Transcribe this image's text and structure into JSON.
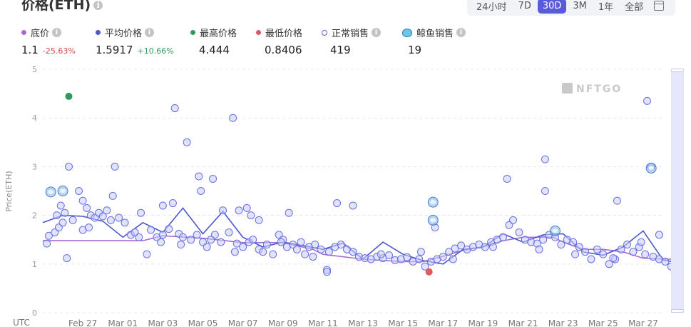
{
  "header": {
    "title": "价格(ETH)"
  },
  "range_buttons": [
    "24小时",
    "7D",
    "30D",
    "3M",
    "1年",
    "全部"
  ],
  "range_active": "30D",
  "stats": {
    "floor": {
      "label": "底价",
      "value": "1.1",
      "change": "-25.63%",
      "color": "#a66ad4"
    },
    "avg": {
      "label": "平均价格",
      "value": "1.5917",
      "change": "+10.66%",
      "color": "#4a58c8"
    },
    "max": {
      "label": "最高价格",
      "value": "4.444",
      "color": "#2e9b5d"
    },
    "min": {
      "label": "最低价格",
      "value": "0.8406",
      "color": "#e05a5a"
    },
    "normal": {
      "label": "正常销售",
      "value": "419",
      "color": "#5a5bdb"
    },
    "whale": {
      "label": "鲸鱼销售",
      "value": "19"
    }
  },
  "watermark": "NFTGO",
  "chart_data": {
    "type": "line",
    "title": "",
    "ylabel": "Price(ETH)",
    "xlabel": "UTC",
    "x_unit": "date",
    "x_range": [
      "2023-02-25",
      "2023-03-28"
    ],
    "xticks": [
      "Feb 27",
      "Mar 01",
      "Mar 03",
      "Mar 05",
      "Mar 07",
      "Mar 09",
      "Mar 11",
      "Mar 13",
      "Mar 15",
      "Mar 17",
      "Mar 19",
      "Mar 21",
      "Mar 23",
      "Mar 25",
      "Mar 27"
    ],
    "ylim": [
      0,
      5
    ],
    "yticks": [
      0,
      1,
      2,
      3,
      4,
      5
    ],
    "grid": true,
    "series": [
      {
        "name": "底价",
        "color": "#a66ad4",
        "points": [
          [
            0.0,
            1.48
          ],
          [
            3.0,
            1.48
          ],
          [
            5.0,
            1.48
          ],
          [
            6.0,
            1.58
          ],
          [
            8.0,
            1.53
          ],
          [
            10.0,
            1.44
          ],
          [
            12.0,
            1.44
          ],
          [
            13.5,
            1.3
          ],
          [
            14.0,
            1.2
          ],
          [
            16.0,
            1.1
          ],
          [
            18.0,
            1.05
          ],
          [
            19.0,
            1.05
          ],
          [
            19.5,
            1.1
          ],
          [
            21.0,
            1.28
          ],
          [
            22.0,
            1.35
          ],
          [
            23.0,
            1.48
          ],
          [
            24.0,
            1.55
          ],
          [
            25.5,
            1.55
          ],
          [
            26.0,
            1.45
          ],
          [
            27.0,
            1.3
          ],
          [
            28.0,
            1.3
          ],
          [
            29.0,
            1.25
          ],
          [
            30.0,
            1.12
          ],
          [
            31.0,
            1.1
          ],
          [
            31.5,
            1.1
          ]
        ]
      },
      {
        "name": "平均价格",
        "color": "#4a58c8",
        "points": [
          [
            0.0,
            1.85
          ],
          [
            1.0,
            2.0
          ],
          [
            2.0,
            1.98
          ],
          [
            3.0,
            1.88
          ],
          [
            4.0,
            1.55
          ],
          [
            5.0,
            1.85
          ],
          [
            6.0,
            1.65
          ],
          [
            7.0,
            2.15
          ],
          [
            8.0,
            1.62
          ],
          [
            9.0,
            2.08
          ],
          [
            10.0,
            1.55
          ],
          [
            11.0,
            1.35
          ],
          [
            12.0,
            1.45
          ],
          [
            13.0,
            1.38
          ],
          [
            14.0,
            1.3
          ],
          [
            15.0,
            1.43
          ],
          [
            16.0,
            1.1
          ],
          [
            17.0,
            1.45
          ],
          [
            18.0,
            1.2
          ],
          [
            19.0,
            1.07
          ],
          [
            20.0,
            1.0
          ],
          [
            21.0,
            1.3
          ],
          [
            22.0,
            1.35
          ],
          [
            23.0,
            1.62
          ],
          [
            24.0,
            1.45
          ],
          [
            25.0,
            1.6
          ],
          [
            26.0,
            1.62
          ],
          [
            27.0,
            1.25
          ],
          [
            28.0,
            1.18
          ],
          [
            29.0,
            1.35
          ],
          [
            30.0,
            1.68
          ],
          [
            31.0,
            1.08
          ],
          [
            31.5,
            1.05
          ]
        ]
      }
    ],
    "highlights": [
      {
        "name": "最高价格",
        "x": 1.3,
        "y": 4.444,
        "color": "#2e9b5d"
      },
      {
        "name": "最低价格",
        "x": 19.3,
        "y": 0.84,
        "color": "#e05a5a"
      }
    ],
    "whale_sales": [
      [
        0.4,
        2.48
      ],
      [
        1.0,
        2.5
      ],
      [
        19.5,
        2.27
      ],
      [
        19.5,
        1.9
      ],
      [
        25.6,
        1.68
      ],
      [
        30.4,
        2.97
      ]
    ],
    "normal_sales": [
      [
        3.6,
        3.0
      ],
      [
        1.3,
        3.0
      ],
      [
        2.2,
        2.15
      ],
      [
        6.6,
        4.2
      ],
      [
        7.2,
        3.5
      ],
      [
        7.8,
        2.8
      ],
      [
        7.9,
        2.5
      ],
      [
        8.5,
        2.75
      ],
      [
        9.5,
        4.0
      ],
      [
        9.0,
        2.1
      ],
      [
        10.2,
        2.15
      ],
      [
        10.8,
        1.9
      ],
      [
        12.3,
        2.05
      ],
      [
        14.7,
        2.25
      ],
      [
        15.5,
        2.2
      ],
      [
        3.5,
        2.4
      ],
      [
        4.9,
        2.05
      ],
      [
        6.0,
        2.2
      ],
      [
        6.5,
        2.25
      ],
      [
        9.8,
        2.1
      ],
      [
        10.4,
        2.0
      ],
      [
        23.2,
        2.75
      ],
      [
        25.1,
        3.15
      ],
      [
        25.1,
        2.5
      ],
      [
        28.7,
        2.3
      ],
      [
        30.2,
        4.35
      ],
      [
        30.4,
        3.0
      ],
      [
        30.8,
        1.6
      ],
      [
        19.6,
        1.75
      ],
      [
        14.2,
        0.88
      ],
      [
        14.2,
        0.84
      ],
      [
        1.2,
        1.12
      ],
      [
        0.2,
        1.42
      ],
      [
        0.3,
        1.58
      ],
      [
        0.6,
        1.65
      ],
      [
        0.8,
        1.75
      ],
      [
        1.0,
        1.85
      ],
      [
        0.7,
        2.0
      ],
      [
        1.1,
        2.05
      ],
      [
        0.9,
        2.2
      ],
      [
        1.5,
        1.9
      ],
      [
        1.8,
        2.5
      ],
      [
        2.0,
        2.3
      ],
      [
        2.4,
        2.0
      ],
      [
        2.6,
        1.95
      ],
      [
        2.8,
        2.05
      ],
      [
        3.0,
        1.98
      ],
      [
        3.2,
        2.1
      ],
      [
        3.4,
        1.9
      ],
      [
        3.8,
        1.95
      ],
      [
        4.1,
        1.85
      ],
      [
        4.4,
        1.6
      ],
      [
        4.8,
        1.55
      ],
      [
        5.2,
        1.2
      ],
      [
        5.4,
        1.7
      ],
      [
        5.7,
        1.55
      ],
      [
        6.0,
        1.6
      ],
      [
        6.3,
        1.72
      ],
      [
        6.8,
        1.62
      ],
      [
        7.0,
        1.55
      ],
      [
        7.4,
        1.5
      ],
      [
        7.7,
        1.6
      ],
      [
        8.0,
        1.45
      ],
      [
        8.2,
        1.35
      ],
      [
        8.6,
        1.6
      ],
      [
        8.9,
        1.45
      ],
      [
        9.3,
        1.65
      ],
      [
        9.7,
        1.42
      ],
      [
        10.0,
        1.35
      ],
      [
        10.3,
        1.45
      ],
      [
        10.5,
        1.5
      ],
      [
        10.8,
        1.3
      ],
      [
        11.0,
        1.25
      ],
      [
        11.2,
        1.4
      ],
      [
        11.5,
        1.2
      ],
      [
        11.8,
        1.6
      ],
      [
        12.0,
        1.5
      ],
      [
        12.2,
        1.35
      ],
      [
        12.5,
        1.4
      ],
      [
        12.7,
        1.3
      ],
      [
        12.9,
        1.45
      ],
      [
        13.1,
        1.2
      ],
      [
        13.3,
        1.35
      ],
      [
        13.6,
        1.4
      ],
      [
        13.9,
        1.3
      ],
      [
        14.3,
        1.25
      ],
      [
        14.6,
        1.35
      ],
      [
        14.9,
        1.4
      ],
      [
        15.2,
        1.3
      ],
      [
        15.5,
        1.25
      ],
      [
        15.8,
        1.15
      ],
      [
        16.1,
        1.12
      ],
      [
        16.4,
        1.1
      ],
      [
        16.7,
        1.15
      ],
      [
        17.0,
        1.12
      ],
      [
        17.3,
        1.18
      ],
      [
        17.6,
        1.08
      ],
      [
        17.9,
        1.1
      ],
      [
        18.2,
        1.14
      ],
      [
        18.5,
        1.05
      ],
      [
        18.8,
        1.1
      ],
      [
        19.1,
        0.95
      ],
      [
        19.4,
        1.05
      ],
      [
        19.7,
        1.1
      ],
      [
        20.0,
        1.15
      ],
      [
        20.3,
        1.25
      ],
      [
        20.6,
        1.32
      ],
      [
        20.9,
        1.38
      ],
      [
        21.2,
        1.3
      ],
      [
        21.5,
        1.35
      ],
      [
        21.8,
        1.4
      ],
      [
        22.1,
        1.35
      ],
      [
        22.4,
        1.45
      ],
      [
        22.7,
        1.5
      ],
      [
        23.0,
        1.55
      ],
      [
        23.3,
        1.8
      ],
      [
        23.5,
        1.9
      ],
      [
        23.8,
        1.65
      ],
      [
        24.1,
        1.5
      ],
      [
        24.4,
        1.45
      ],
      [
        24.7,
        1.42
      ],
      [
        25.0,
        1.5
      ],
      [
        25.3,
        1.6
      ],
      [
        25.6,
        1.55
      ],
      [
        25.9,
        1.4
      ],
      [
        26.2,
        1.5
      ],
      [
        26.5,
        1.45
      ],
      [
        26.8,
        1.35
      ],
      [
        27.1,
        1.25
      ],
      [
        27.4,
        1.1
      ],
      [
        27.7,
        1.3
      ],
      [
        28.0,
        1.2
      ],
      [
        28.3,
        1.0
      ],
      [
        28.6,
        1.1
      ],
      [
        28.9,
        1.3
      ],
      [
        29.2,
        1.4
      ],
      [
        29.5,
        1.25
      ],
      [
        29.8,
        1.35
      ],
      [
        30.1,
        1.2
      ],
      [
        30.5,
        1.15
      ],
      [
        30.8,
        1.1
      ],
      [
        31.1,
        1.05
      ],
      [
        31.4,
        0.95
      ],
      [
        2.0,
        1.7
      ],
      [
        2.3,
        1.75
      ],
      [
        4.6,
        1.65
      ],
      [
        5.9,
        1.45
      ],
      [
        6.9,
        1.4
      ],
      [
        8.4,
        1.5
      ],
      [
        9.6,
        1.25
      ],
      [
        11.9,
        1.45
      ],
      [
        13.5,
        1.15
      ],
      [
        16.9,
        1.2
      ],
      [
        18.9,
        1.25
      ],
      [
        20.5,
        1.1
      ],
      [
        22.5,
        1.35
      ],
      [
        24.8,
        1.3
      ],
      [
        26.6,
        1.2
      ],
      [
        28.5,
        1.12
      ],
      [
        29.9,
        1.45
      ]
    ]
  }
}
